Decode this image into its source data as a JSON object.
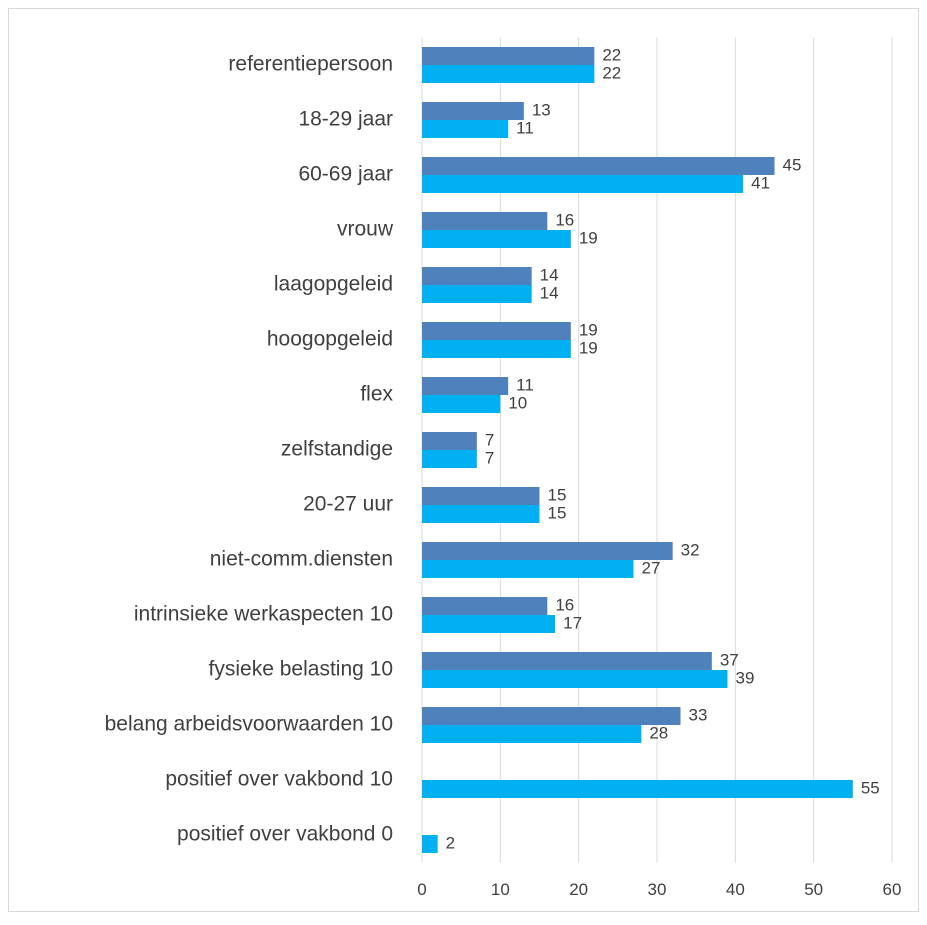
{
  "chart_data": {
    "type": "bar",
    "orientation": "horizontal",
    "categories": [
      "referentiepersoon",
      "18-29 jaar",
      "60-69 jaar",
      "vrouw",
      "laagopgeleid",
      "hoogopgeleid",
      "flex",
      "zelfstandige",
      "20-27 uur",
      "niet-comm.diensten",
      "intrinsieke werkaspecten 10",
      "fysieke belasting 10",
      "belang arbeidsvoorwaarden 10",
      "positief over vakbond 10",
      "positief over vakbond 0"
    ],
    "series": [
      {
        "color": "#4f81bd",
        "values": [
          22,
          13,
          45,
          16,
          14,
          19,
          11,
          7,
          15,
          32,
          16,
          37,
          33,
          null,
          null
        ]
      },
      {
        "color": "#00b0f0",
        "values": [
          22,
          11,
          41,
          19,
          14,
          19,
          10,
          7,
          15,
          27,
          17,
          39,
          28,
          55,
          2
        ]
      }
    ],
    "xlim": [
      0,
      60
    ],
    "xticks": [
      0,
      10,
      20,
      30,
      40,
      50,
      60
    ],
    "grid": true
  }
}
